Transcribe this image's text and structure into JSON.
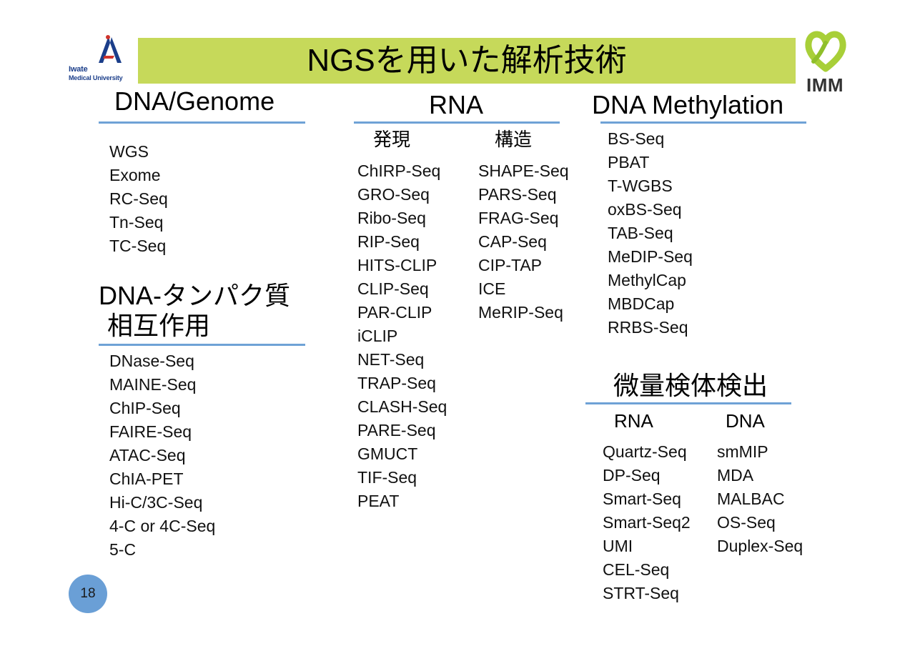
{
  "title": "NGSを用いた解析技術",
  "logos": {
    "left_line1": "Iwate",
    "left_line2": "Medical University",
    "right": "IMM"
  },
  "sections": {
    "dna_genome": {
      "heading": "DNA/Genome",
      "items": [
        "WGS",
        "Exome",
        "RC-Seq",
        "Tn-Seq",
        "TC-Seq"
      ]
    },
    "dna_protein": {
      "heading_line1": "DNA-タンパク質",
      "heading_line2": "相互作用",
      "items": [
        "DNase-Seq",
        "MAINE-Seq",
        "ChIP-Seq",
        "FAIRE-Seq",
        "ATAC-Seq",
        "ChIA-PET",
        "Hi-C/3C-Seq",
        "4-C or 4C-Seq",
        "5-C"
      ]
    },
    "rna": {
      "heading": "RNA",
      "expression": {
        "label": "発現",
        "items": [
          "ChIRP-Seq",
          "GRO-Seq",
          "Ribo-Seq",
          "RIP-Seq",
          "HITS-CLIP",
          "CLIP-Seq",
          "PAR-CLIP",
          "iCLIP",
          "NET-Seq",
          "TRAP-Seq",
          "CLASH-Seq",
          "PARE-Seq",
          "GMUCT",
          "TIF-Seq",
          "PEAT"
        ]
      },
      "structure": {
        "label": "構造",
        "items": [
          "SHAPE-Seq",
          "PARS-Seq",
          "FRAG-Seq",
          "CAP-Seq",
          "CIP-TAP",
          "ICE",
          "MeRIP-Seq"
        ]
      }
    },
    "dna_methylation": {
      "heading": "DNA Methylation",
      "items": [
        "BS-Seq",
        "PBAT",
        "T-WGBS",
        "oxBS-Seq",
        "TAB-Seq",
        "MeDIP-Seq",
        "MethylCap",
        "MBDCap",
        "RRBS-Seq"
      ]
    },
    "low_input": {
      "heading": "微量検体検出",
      "rna": {
        "label": "RNA",
        "items": [
          "Quartz-Seq",
          "DP-Seq",
          "Smart-Seq",
          "Smart-Seq2",
          "UMI",
          "CEL-Seq",
          "STRT-Seq"
        ]
      },
      "dna": {
        "label": "DNA",
        "items": [
          "smMIP",
          "MDA",
          "MALBAC",
          "OS-Seq",
          "Duplex-Seq"
        ]
      }
    }
  },
  "page_number": "18",
  "colors": {
    "title_bar": "#c6d95a",
    "underline": "#6fa2d6",
    "page_badge": "#6a9fd6"
  }
}
